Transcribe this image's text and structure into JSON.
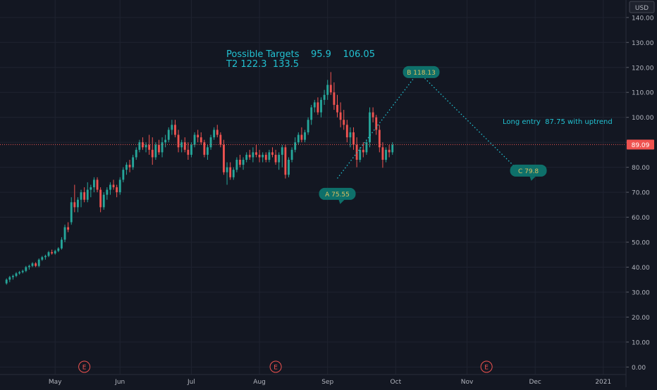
{
  "chart_data": {
    "type": "candlestick",
    "currency": "USD",
    "y_ticks": [
      0,
      10,
      20,
      30,
      40,
      50,
      60,
      70,
      80,
      90,
      100,
      110,
      120,
      130,
      140
    ],
    "y_tick_labels": [
      "0.00",
      "10.00",
      "20.00",
      "30.00",
      "40.00",
      "50.00",
      "60.00",
      "70.00",
      "80.00",
      "90.00",
      "100.00",
      "110.00",
      "120.00",
      "130.00",
      "140.00"
    ],
    "ylim": [
      -3,
      147
    ],
    "x_labels": [
      {
        "label": "May",
        "index": 15
      },
      {
        "label": "Jun",
        "index": 35
      },
      {
        "label": "Jul",
        "index": 57
      },
      {
        "label": "Aug",
        "index": 78
      },
      {
        "label": "Sep",
        "index": 99
      },
      {
        "label": "Oct",
        "index": 120
      },
      {
        "label": "Nov",
        "index": 142
      },
      {
        "label": "Dec",
        "index": 163
      },
      {
        "label": "2021",
        "index": 184
      }
    ],
    "xlim": [
      -2,
      191
    ],
    "last_price": "89.09",
    "last_price_value": 89.09,
    "earnings_markers": [
      {
        "label": "E",
        "index": 24
      },
      {
        "label": "E",
        "index": 83
      },
      {
        "label": "E",
        "index": 148
      }
    ],
    "targets_text_1": "Possible Targets    95.9    106.05",
    "targets_text_2": "T2 122.3  133.5",
    "long_entry_text": "Long entry  87.75 with uptrend",
    "labels": [
      {
        "text": "A 75.55",
        "index": 102,
        "value": 75.55
      },
      {
        "text": "B  118.13",
        "index": 127,
        "value": 118.13
      },
      {
        "text": "C  79.8",
        "index": 157,
        "value": 79.8
      }
    ],
    "abc_path": [
      {
        "index": 102,
        "value": 75.55
      },
      {
        "index": 127,
        "value": 118.13
      },
      {
        "index": 157,
        "value": 79.8
      }
    ],
    "colors": {
      "up": "#26a69a",
      "down": "#ef5350",
      "background": "#131722",
      "accent": "#22c1d1",
      "label_fill": "#0e706a"
    },
    "ohlc": [
      [
        33.5,
        35.5,
        33,
        35
      ],
      [
        35,
        36.5,
        34,
        36
      ],
      [
        36,
        37,
        35,
        36.5
      ],
      [
        36.5,
        38,
        36,
        37.5
      ],
      [
        37.5,
        38.5,
        37,
        38
      ],
      [
        38,
        39,
        37.5,
        38.5
      ],
      [
        38.5,
        40.5,
        38,
        40
      ],
      [
        40,
        41,
        39,
        40.5
      ],
      [
        40.5,
        42,
        40,
        41.5
      ],
      [
        41.5,
        42,
        40,
        40.5
      ],
      [
        40.5,
        43.5,
        40,
        43
      ],
      [
        43,
        44.5,
        42.5,
        44
      ],
      [
        44,
        45,
        43,
        44.5
      ],
      [
        44.5,
        46.5,
        44,
        46
      ],
      [
        46,
        47,
        45,
        45.5
      ],
      [
        45.5,
        47,
        45,
        46.5
      ],
      [
        46.5,
        48,
        46,
        47.5
      ],
      [
        47.5,
        52,
        47,
        51
      ],
      [
        51,
        57,
        50,
        56
      ],
      [
        56,
        58,
        54,
        55
      ],
      [
        58,
        68,
        57,
        66
      ],
      [
        66,
        73,
        62,
        64
      ],
      [
        64,
        68,
        62,
        67
      ],
      [
        67,
        71,
        64,
        70
      ],
      [
        70,
        72,
        66,
        67
      ],
      [
        67,
        74,
        66,
        71
      ],
      [
        71,
        73,
        68,
        72
      ],
      [
        72,
        76,
        70,
        75
      ],
      [
        75,
        76,
        70,
        71
      ],
      [
        71,
        72,
        62,
        64
      ],
      [
        64,
        70,
        63,
        69
      ],
      [
        69,
        72,
        67,
        71
      ],
      [
        71,
        74,
        69,
        73
      ],
      [
        73,
        75,
        71,
        72
      ],
      [
        72,
        73,
        68,
        70
      ],
      [
        70,
        76,
        69,
        75
      ],
      [
        75,
        80,
        74,
        79
      ],
      [
        79,
        82,
        77,
        81
      ],
      [
        81,
        83,
        78,
        80
      ],
      [
        80,
        85,
        79,
        84
      ],
      [
        84,
        88,
        83,
        87
      ],
      [
        87,
        91,
        86,
        90
      ],
      [
        90,
        92,
        87,
        88
      ],
      [
        88,
        90,
        86,
        89
      ],
      [
        89,
        93,
        85,
        87
      ],
      [
        87,
        92,
        81,
        84
      ],
      [
        84,
        90,
        83,
        89
      ],
      [
        89,
        91,
        85,
        86
      ],
      [
        86,
        92,
        84,
        90
      ],
      [
        90,
        93,
        88,
        91
      ],
      [
        91,
        96,
        90,
        95
      ],
      [
        95,
        99,
        93,
        97
      ],
      [
        97,
        99,
        92,
        93
      ],
      [
        93,
        95,
        86,
        88
      ],
      [
        88,
        91,
        86,
        90
      ],
      [
        90,
        92,
        86,
        87
      ],
      [
        87,
        90,
        83,
        85
      ],
      [
        85,
        90,
        84,
        89
      ],
      [
        89,
        94,
        88,
        93
      ],
      [
        93,
        95,
        90,
        92
      ],
      [
        92,
        94,
        89,
        90
      ],
      [
        90,
        91,
        84,
        85
      ],
      [
        85,
        89,
        83,
        88
      ],
      [
        88,
        93,
        87,
        92
      ],
      [
        92,
        96,
        91,
        95
      ],
      [
        95,
        97,
        92,
        93
      ],
      [
        93,
        94,
        88,
        89
      ],
      [
        89,
        91,
        77,
        78
      ],
      [
        78,
        82,
        73,
        80
      ],
      [
        80,
        82,
        75,
        76
      ],
      [
        76,
        80,
        75,
        79
      ],
      [
        79,
        84,
        78,
        83
      ],
      [
        83,
        85,
        80,
        81
      ],
      [
        81,
        84,
        79,
        83
      ],
      [
        83,
        86,
        82,
        85
      ],
      [
        85,
        87,
        83,
        84
      ],
      [
        84,
        88,
        82,
        86
      ],
      [
        86,
        89,
        84,
        85
      ],
      [
        85,
        87,
        82,
        84
      ],
      [
        84,
        86,
        82,
        85
      ],
      [
        85,
        86,
        82,
        83
      ],
      [
        83,
        87,
        82,
        86
      ],
      [
        86,
        88,
        84,
        85
      ],
      [
        85,
        87,
        81,
        82
      ],
      [
        82,
        86,
        79,
        85
      ],
      [
        85,
        89,
        80,
        88
      ],
      [
        88,
        89,
        75.5,
        77
      ],
      [
        77,
        84,
        76,
        83
      ],
      [
        83,
        88,
        82,
        87
      ],
      [
        87,
        92,
        86,
        90
      ],
      [
        90,
        94,
        89,
        93
      ],
      [
        93,
        96,
        90,
        91
      ],
      [
        91,
        95,
        90,
        94
      ],
      [
        94,
        100,
        93,
        99
      ],
      [
        99,
        105,
        97,
        104
      ],
      [
        104,
        107,
        102,
        106
      ],
      [
        106,
        108,
        101,
        102
      ],
      [
        102,
        108,
        100,
        107
      ],
      [
        107,
        111,
        105,
        109
      ],
      [
        109,
        115,
        107,
        113
      ],
      [
        113,
        118.13,
        109,
        110
      ],
      [
        110,
        114,
        103,
        105
      ],
      [
        105,
        109,
        100,
        102
      ],
      [
        102,
        106,
        96,
        99
      ],
      [
        99,
        103,
        95,
        97
      ],
      [
        97,
        99,
        90,
        92
      ],
      [
        92,
        96,
        88,
        94
      ],
      [
        94,
        96,
        87,
        89
      ],
      [
        89,
        92,
        80,
        83
      ],
      [
        83,
        88,
        82,
        87
      ],
      [
        87,
        90,
        84,
        86
      ],
      [
        86,
        91,
        85,
        90
      ],
      [
        90,
        104,
        88,
        102
      ],
      [
        102,
        104,
        98,
        100
      ],
      [
        100,
        101,
        93,
        95
      ],
      [
        95,
        97,
        86,
        88
      ],
      [
        88,
        90,
        79.8,
        83
      ],
      [
        83,
        88,
        82,
        87
      ],
      [
        87,
        89,
        84,
        86
      ],
      [
        86,
        90,
        85,
        89
      ]
    ]
  }
}
